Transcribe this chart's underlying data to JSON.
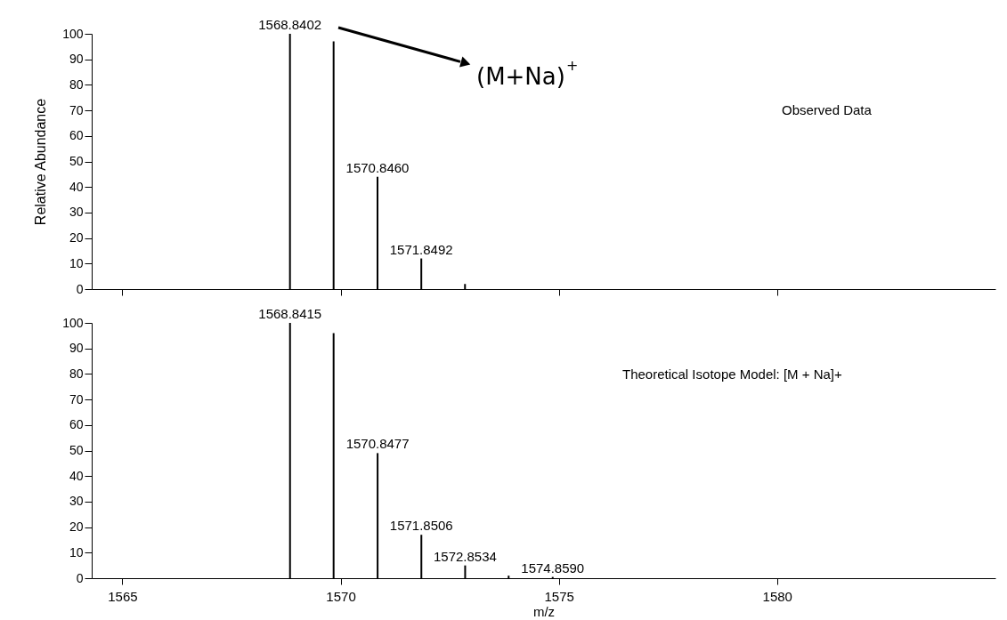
{
  "chart_data": [
    {
      "type": "bar",
      "ylabel": "Relative Abundance",
      "x": [
        1568.8402,
        1569.84,
        1570.846,
        1571.8492,
        1572.85
      ],
      "series": [
        {
          "color": "#000000",
          "values": [
            100,
            97,
            44,
            12,
            2
          ]
        }
      ],
      "xlim": [
        1564.4,
        1584.9
      ],
      "xticks": [
        1565,
        1570,
        1575,
        1580
      ],
      "ylim": [
        0,
        100
      ],
      "yticks": [
        0,
        10,
        20,
        30,
        40,
        50,
        60,
        70,
        80,
        90,
        100
      ],
      "tick_labels": "y",
      "grid": false,
      "annotations": [
        "(M+Na)$^{+}$",
        "Observed Data",
        {
          "text": "1568.8402",
          "x": 1568.8402,
          "y": 100
        },
        {
          "text": "1570.8460",
          "x": 1570.846,
          "y": 44
        },
        {
          "text": "1571.8492",
          "x": 1571.8492,
          "y": 12
        }
      ]
    },
    {
      "type": "bar",
      "xlabel": "m/z",
      "x": [
        1568.8415,
        1569.84,
        1570.8477,
        1571.8506,
        1572.8534,
        1573.85,
        1574.859
      ],
      "series": [
        {
          "color": "#000000",
          "values": [
            100,
            96,
            49,
            17,
            5,
            1,
            0.5
          ]
        }
      ],
      "xlim": [
        1564.4,
        1584.9
      ],
      "xticks": [
        1565,
        1570,
        1575,
        1580
      ],
      "ylim": [
        0,
        100
      ],
      "yticks": [
        0,
        10,
        20,
        30,
        40,
        50,
        60,
        70,
        80,
        90,
        100
      ],
      "grid": false,
      "annotations": [
        "Theoretical Isotope Model: [M + Na]+",
        {
          "text": "1568.8415",
          "x": 1568.8415,
          "y": 100
        },
        {
          "text": "1570.8477",
          "x": 1570.8477,
          "y": 49
        },
        {
          "text": "1571.8506",
          "x": 1571.8506,
          "y": 17
        },
        {
          "text": "1572.8534",
          "x": 1572.8534,
          "y": 5
        },
        {
          "text": "1574.8590",
          "x": 1574.859,
          "y": 0.5
        }
      ]
    }
  ]
}
